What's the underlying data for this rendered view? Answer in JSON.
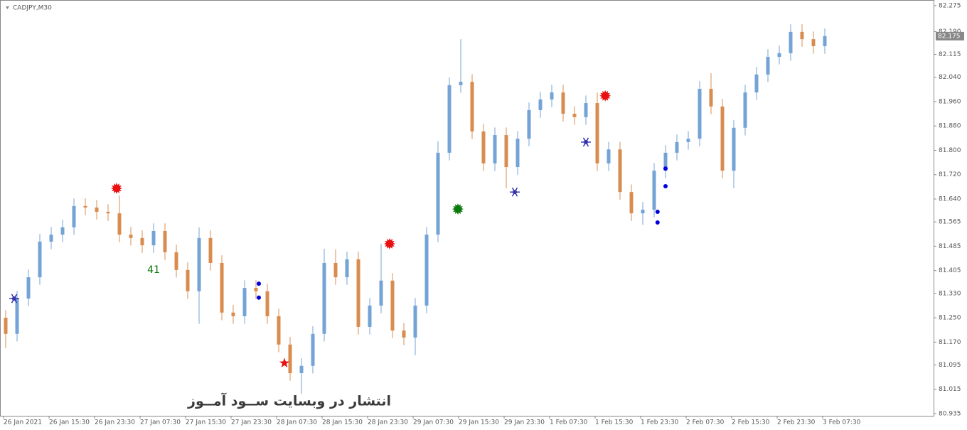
{
  "chart_data": {
    "type": "candlestick",
    "title": "CADJPY,M30",
    "watermark": "انتشار در وبسایت ســود آمــوز",
    "up_color": "#74a3d6",
    "down_color": "#d98c50",
    "categories": [
      "26 Jan 2021",
      null,
      null,
      null,
      "26 Jan 15:30",
      null,
      null,
      null,
      "26 Jan 23:30",
      null,
      null,
      null,
      "27 Jan 07:30",
      null,
      null,
      null,
      "27 Jan 15:30",
      null,
      null,
      null,
      "27 Jan 23:30",
      null,
      null,
      null,
      "28 Jan 07:30",
      null,
      null,
      null,
      "28 Jan 15:30",
      null,
      null,
      null,
      "28 Jan 23:30",
      null,
      null,
      null,
      "29 Jan 07:30",
      null,
      null,
      null,
      "29 Jan 15:30",
      null,
      null,
      null,
      "29 Jan 23:30",
      null,
      null,
      null,
      "1 Feb 07:30",
      null,
      null,
      null,
      "1 Feb 15:30",
      null,
      null,
      null,
      "1 Feb 23:30",
      null,
      null,
      null,
      "2 Feb 07:30",
      null,
      null,
      null,
      "2 Feb 15:30",
      null,
      null,
      null,
      "2 Feb 23:30",
      null,
      null,
      null,
      "3 Feb 07:30"
    ],
    "open": [
      81.25,
      81.197,
      81.313,
      81.383,
      81.5,
      81.523,
      81.547,
      81.617,
      81.612,
      81.598,
      81.593,
      81.523,
      81.512,
      81.488,
      81.535,
      81.465,
      81.407,
      81.337,
      81.512,
      81.43,
      81.267,
      81.255,
      81.348,
      81.337,
      81.255,
      81.162,
      81.068,
      81.092,
      81.197,
      81.43,
      81.383,
      81.442,
      81.22,
      81.29,
      81.372,
      81.208,
      81.185,
      81.29,
      81.523,
      81.792,
      82.014,
      82.025,
      81.862,
      81.757,
      81.85,
      81.745,
      81.838,
      81.932,
      81.967,
      81.99,
      81.92,
      81.909,
      81.955,
      81.757,
      81.803,
      81.663,
      81.593,
      81.605,
      81.733,
      81.792,
      81.827,
      81.838,
      82.002,
      81.944,
      81.733,
      81.874,
      81.99,
      82.049,
      82.107,
      82.119,
      82.189,
      82.165,
      82.142
    ],
    "high": [
      81.275,
      81.338,
      81.408,
      81.525,
      81.548,
      81.572,
      81.642,
      81.642,
      81.637,
      81.623,
      81.652,
      81.548,
      81.537,
      81.56,
      81.56,
      81.49,
      81.432,
      81.547,
      81.537,
      81.455,
      81.292,
      81.373,
      81.373,
      81.362,
      81.28,
      81.187,
      81.117,
      81.222,
      81.477,
      81.475,
      81.467,
      81.467,
      81.315,
      81.493,
      81.397,
      81.233,
      81.315,
      81.548,
      81.83,
      82.039,
      82.165,
      82.05,
      81.887,
      81.875,
      81.875,
      81.863,
      81.957,
      81.992,
      82.015,
      82.015,
      81.945,
      81.98,
      81.99,
      81.828,
      81.828,
      81.688,
      81.63,
      81.758,
      81.817,
      81.852,
      81.863,
      82.027,
      82.053,
      81.969,
      81.899,
      82.015,
      82.074,
      82.132,
      82.144,
      82.214,
      82.214,
      82.19,
      82.2
    ],
    "low": [
      81.15,
      81.172,
      81.288,
      81.358,
      81.475,
      81.498,
      81.522,
      81.587,
      81.573,
      81.568,
      81.498,
      81.487,
      81.463,
      81.463,
      81.44,
      81.382,
      81.312,
      81.23,
      81.405,
      81.242,
      81.23,
      81.23,
      81.312,
      81.23,
      81.137,
      81.043,
      81.0,
      81.067,
      81.172,
      81.358,
      81.358,
      81.195,
      81.195,
      81.265,
      81.183,
      81.16,
      81.127,
      81.265,
      81.498,
      81.767,
      81.989,
      81.837,
      81.732,
      81.732,
      81.675,
      81.72,
      81.813,
      81.907,
      81.942,
      81.895,
      81.884,
      81.884,
      81.732,
      81.732,
      81.638,
      81.568,
      81.555,
      81.58,
      81.708,
      81.767,
      81.802,
      81.813,
      81.919,
      81.708,
      81.675,
      81.849,
      81.965,
      82.024,
      82.082,
      82.094,
      82.14,
      82.117,
      82.117
    ],
    "close": [
      81.197,
      81.313,
      81.383,
      81.5,
      81.523,
      81.547,
      81.617,
      81.612,
      81.598,
      81.593,
      81.523,
      81.512,
      81.488,
      81.535,
      81.465,
      81.407,
      81.337,
      81.512,
      81.43,
      81.267,
      81.255,
      81.348,
      81.337,
      81.255,
      81.162,
      81.068,
      81.092,
      81.197,
      81.43,
      81.383,
      81.442,
      81.22,
      81.29,
      81.372,
      81.208,
      81.185,
      81.29,
      81.523,
      81.792,
      82.014,
      82.025,
      81.862,
      81.757,
      81.85,
      81.745,
      81.838,
      81.932,
      81.967,
      81.99,
      81.92,
      81.909,
      81.955,
      81.757,
      81.803,
      81.663,
      81.593,
      81.605,
      81.733,
      81.792,
      81.827,
      81.838,
      82.002,
      81.944,
      81.733,
      81.874,
      81.99,
      82.049,
      82.107,
      82.119,
      82.189,
      82.165,
      82.142,
      82.175
    ],
    "last_price": 82.175,
    "ylim": [
      80.935,
      82.275
    ],
    "yticks": [
      82.275,
      {
        "value": 82.19,
        "label": "82.190"
      },
      82.115,
      {
        "value": 82.04,
        "label": "82.040"
      },
      {
        "value": 81.96,
        "label": "81.960"
      },
      {
        "value": 81.88,
        "label": "81.880"
      },
      {
        "value": 81.8,
        "label": "81.800"
      },
      {
        "value": 81.72,
        "label": "81.720"
      },
      {
        "value": 81.64,
        "label": "81.640"
      },
      81.565,
      81.485,
      81.405,
      {
        "value": 81.33,
        "label": "81.330"
      },
      {
        "value": 81.25,
        "label": "81.250"
      },
      {
        "value": 81.17,
        "label": "81.170"
      },
      81.095,
      81.015,
      80.935
    ],
    "markers": [
      {
        "shape": "sun",
        "color": "#e81010",
        "x": 9.75,
        "y": 81.675
      },
      {
        "shape": "sun",
        "color": "#e81010",
        "x": 33.75,
        "y": 81.493
      },
      {
        "shape": "sun",
        "color": "#0a7a0a",
        "x": 39.75,
        "y": 81.607
      },
      {
        "shape": "sun",
        "color": "#e81010",
        "x": 52.7,
        "y": 81.979
      },
      {
        "shape": "snowflake",
        "color": "#2a2aa8",
        "x": 0.75,
        "y": 81.313
      },
      {
        "shape": "snowflake",
        "color": "#2a2aa8",
        "x": 44.75,
        "y": 81.663
      },
      {
        "shape": "snowflake",
        "color": "#2a2aa8",
        "x": 51,
        "y": 81.827
      },
      {
        "shape": "dot",
        "color": "#0000dd",
        "x": 22.25,
        "y": 81.362
      },
      {
        "shape": "dot",
        "color": "#0000dd",
        "x": 22.25,
        "y": 81.316
      },
      {
        "shape": "dot",
        "color": "#0000dd",
        "x": 57.3,
        "y": 81.598
      },
      {
        "shape": "dot",
        "color": "#0000dd",
        "x": 57.3,
        "y": 81.563
      },
      {
        "shape": "dot",
        "color": "#0000dd",
        "x": 58,
        "y": 81.74
      },
      {
        "shape": "dot",
        "color": "#0000dd",
        "x": 58,
        "y": 81.682
      },
      {
        "shape": "star",
        "color": "#e81010",
        "x": 24.5,
        "y": 81.101
      }
    ],
    "annotations": [
      {
        "text": "41",
        "color": "#0a7a0a",
        "x": 13,
        "y": 81.407
      }
    ]
  }
}
